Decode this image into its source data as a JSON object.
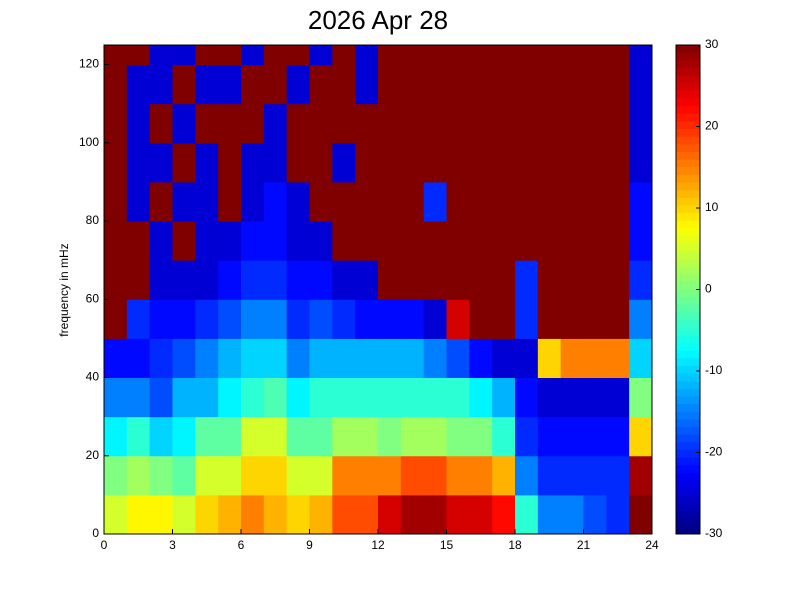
{
  "chart_data": {
    "type": "heatmap",
    "title": "2026 Apr 28",
    "y_label": "frequency in mHz",
    "x_bins": [
      0,
      1,
      2,
      3,
      4,
      5,
      6,
      7,
      8,
      9,
      10,
      11,
      12,
      13,
      14,
      15,
      16,
      17,
      18,
      19,
      20,
      21,
      22,
      23,
      24
    ],
    "y_bins": [
      0,
      10,
      20,
      30,
      40,
      50,
      60,
      70,
      80,
      90,
      100,
      110,
      120,
      125
    ],
    "values": [
      [
        5,
        8,
        8,
        5,
        10,
        12,
        15,
        12,
        10,
        12,
        18,
        18,
        25,
        28,
        28,
        25,
        25,
        22,
        -5,
        -15,
        -15,
        -18,
        -20,
        30
      ],
      [
        0,
        2,
        0,
        -2,
        5,
        5,
        10,
        10,
        5,
        5,
        15,
        15,
        15,
        18,
        18,
        15,
        15,
        12,
        -15,
        -20,
        -20,
        -20,
        -20,
        28
      ],
      [
        -8,
        -5,
        -10,
        -8,
        -2,
        -2,
        5,
        5,
        -2,
        -2,
        2,
        2,
        0,
        2,
        2,
        0,
        0,
        -5,
        -20,
        -22,
        -22,
        -22,
        -22,
        10
      ],
      [
        -15,
        -15,
        -18,
        -12,
        -12,
        -8,
        -5,
        -3,
        -8,
        -5,
        -5,
        -5,
        -5,
        -5,
        -5,
        -5,
        -8,
        -12,
        -22,
        -25,
        -25,
        -25,
        -25,
        0
      ],
      [
        -22,
        -22,
        -20,
        -18,
        -15,
        -12,
        -10,
        -10,
        -15,
        -12,
        -12,
        -12,
        -12,
        -12,
        -15,
        -18,
        -22,
        -25,
        -25,
        10,
        15,
        15,
        15,
        -10
      ],
      [
        30,
        -20,
        -22,
        -22,
        -20,
        -18,
        -15,
        -15,
        -20,
        -18,
        -20,
        -22,
        -22,
        -22,
        -25,
        25,
        30,
        30,
        -20,
        30,
        30,
        30,
        30,
        -15
      ],
      [
        30,
        30,
        -25,
        -25,
        -25,
        -22,
        -20,
        -20,
        -22,
        -22,
        -25,
        -25,
        30,
        30,
        30,
        30,
        30,
        30,
        -20,
        30,
        30,
        30,
        30,
        -20
      ],
      [
        30,
        30,
        -25,
        30,
        -25,
        -25,
        -22,
        -22,
        -25,
        -25,
        30,
        30,
        30,
        30,
        30,
        30,
        30,
        30,
        30,
        30,
        30,
        30,
        30,
        -22
      ],
      [
        30,
        -25,
        30,
        -25,
        -25,
        30,
        -25,
        -22,
        -25,
        30,
        30,
        30,
        30,
        30,
        -20,
        30,
        30,
        30,
        30,
        30,
        30,
        30,
        30,
        -22
      ],
      [
        30,
        -25,
        -25,
        30,
        -25,
        30,
        -25,
        -25,
        30,
        30,
        -25,
        30,
        30,
        30,
        30,
        30,
        30,
        30,
        30,
        30,
        30,
        30,
        30,
        -25
      ],
      [
        30,
        -25,
        30,
        -25,
        30,
        30,
        30,
        -25,
        30,
        30,
        30,
        30,
        30,
        30,
        30,
        30,
        30,
        30,
        30,
        30,
        30,
        30,
        30,
        -25
      ],
      [
        30,
        -25,
        -25,
        30,
        -25,
        -25,
        30,
        30,
        -25,
        30,
        30,
        -25,
        30,
        30,
        30,
        30,
        30,
        30,
        30,
        30,
        30,
        30,
        30,
        -25
      ],
      [
        30,
        30,
        -25,
        -25,
        30,
        30,
        -25,
        30,
        30,
        -25,
        30,
        -25,
        30,
        30,
        30,
        30,
        30,
        30,
        30,
        30,
        30,
        30,
        30,
        -25
      ]
    ],
    "xlim": [
      0,
      24
    ],
    "xticks": [
      0,
      3,
      6,
      9,
      12,
      15,
      18,
      21,
      24
    ],
    "ylim": [
      0,
      125
    ],
    "yticks": [
      0,
      20,
      40,
      60,
      80,
      100,
      120
    ],
    "colormap": "jet",
    "clim": [
      -30,
      30
    ],
    "cticks": [
      -30,
      -20,
      -10,
      0,
      10,
      20,
      30
    ]
  }
}
